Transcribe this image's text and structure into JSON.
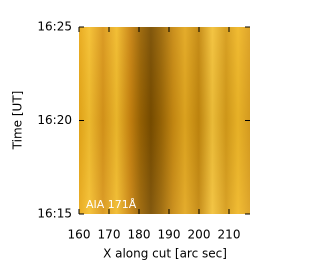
{
  "chart_data": {
    "type": "image",
    "xlabel": "X along cut [arc sec]",
    "ylabel": "Time [UT]",
    "annotation": "AIA 171Å",
    "xlim": [
      160,
      217
    ],
    "xticks": [
      160,
      170,
      180,
      190,
      200,
      210
    ],
    "ylim": [
      15,
      25
    ],
    "yticks": [
      {
        "value": 15,
        "label": "16:15"
      },
      {
        "value": 20,
        "label": "16:20"
      },
      {
        "value": 25,
        "label": "16:25"
      }
    ]
  }
}
